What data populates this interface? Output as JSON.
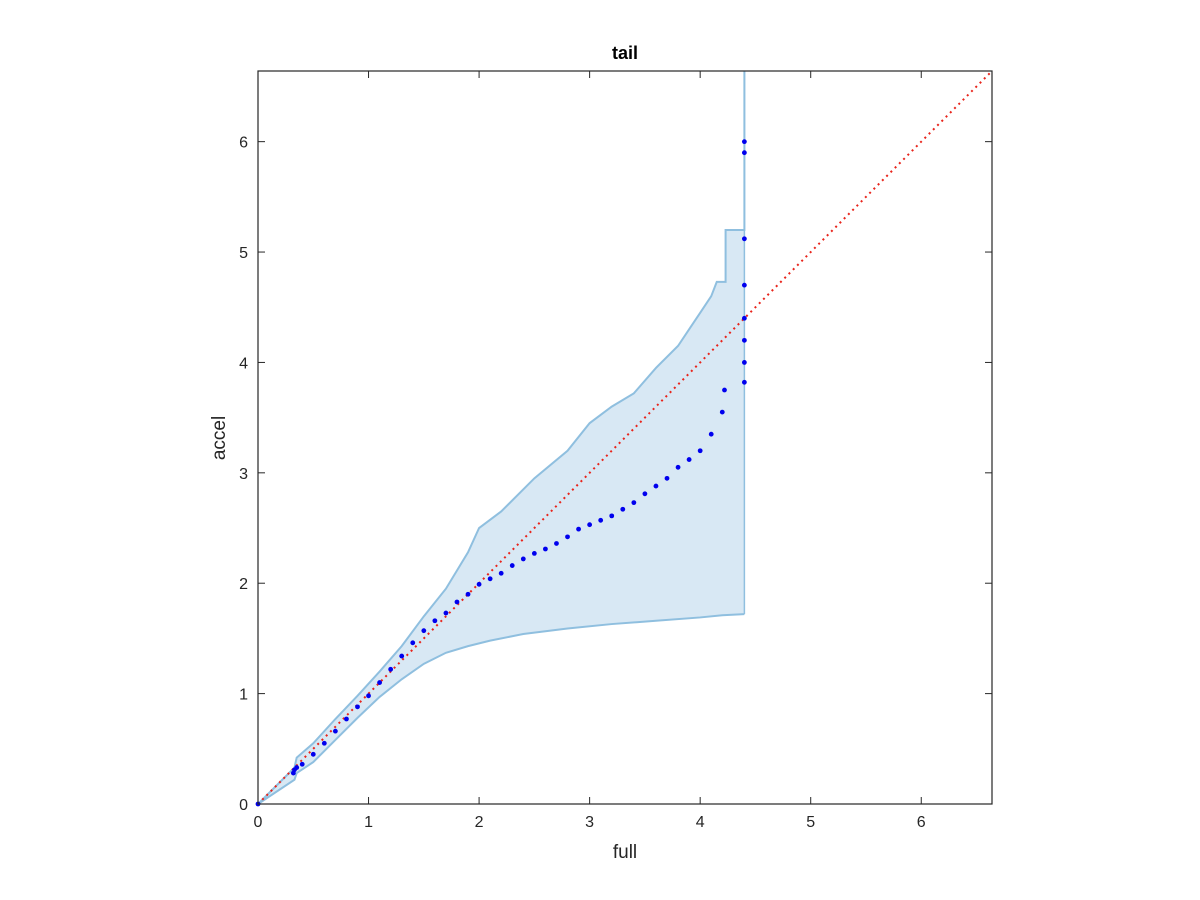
{
  "chart_data": {
    "type": "scatter",
    "title": "tail",
    "xlabel": "full",
    "ylabel": "accel",
    "xlim": [
      0,
      6.64
    ],
    "ylim": [
      0,
      6.64
    ],
    "xticks": [
      "0",
      "1",
      "2",
      "3",
      "4",
      "5",
      "6"
    ],
    "yticks": [
      "0",
      "1",
      "2",
      "3",
      "4",
      "5",
      "6"
    ],
    "grid": false,
    "legend": "none",
    "colors": {
      "points": "#0000ee",
      "reference_line": "#e8241b",
      "band_fill": "#d8e8f4",
      "band_edge": "#8fbfdf",
      "axes": "#262626"
    },
    "reference_line": {
      "style": "dotted",
      "from": [
        0,
        0
      ],
      "to": [
        6.64,
        6.64
      ]
    },
    "envelope_upper": [
      [
        0,
        0
      ],
      [
        0.33,
        0.33
      ],
      [
        0.35,
        0.42
      ],
      [
        0.5,
        0.55
      ],
      [
        0.7,
        0.77
      ],
      [
        0.9,
        0.98
      ],
      [
        1.1,
        1.2
      ],
      [
        1.3,
        1.43
      ],
      [
        1.5,
        1.7
      ],
      [
        1.7,
        1.95
      ],
      [
        1.9,
        2.28
      ],
      [
        2.0,
        2.5
      ],
      [
        2.2,
        2.65
      ],
      [
        2.5,
        2.95
      ],
      [
        2.8,
        3.2
      ],
      [
        3.0,
        3.45
      ],
      [
        3.2,
        3.6
      ],
      [
        3.4,
        3.72
      ],
      [
        3.6,
        3.95
      ],
      [
        3.8,
        4.15
      ],
      [
        3.9,
        4.3
      ],
      [
        4.0,
        4.45
      ],
      [
        4.1,
        4.6
      ],
      [
        4.15,
        4.73
      ],
      [
        4.23,
        4.73
      ],
      [
        4.23,
        5.2
      ],
      [
        4.4,
        5.2
      ],
      [
        4.4,
        5.9
      ],
      [
        4.4,
        6.64
      ]
    ],
    "envelope_lower": [
      [
        0,
        0
      ],
      [
        0.33,
        0.22
      ],
      [
        0.35,
        0.28
      ],
      [
        0.5,
        0.38
      ],
      [
        0.7,
        0.58
      ],
      [
        0.9,
        0.78
      ],
      [
        1.1,
        0.97
      ],
      [
        1.3,
        1.13
      ],
      [
        1.5,
        1.27
      ],
      [
        1.7,
        1.37
      ],
      [
        1.9,
        1.43
      ],
      [
        2.1,
        1.48
      ],
      [
        2.4,
        1.54
      ],
      [
        2.8,
        1.59
      ],
      [
        3.2,
        1.63
      ],
      [
        3.6,
        1.66
      ],
      [
        4.0,
        1.69
      ],
      [
        4.2,
        1.71
      ],
      [
        4.4,
        1.72
      ]
    ],
    "series": [
      {
        "points": [
          [
            0.0,
            0.0
          ],
          [
            0.32,
            0.28
          ],
          [
            0.33,
            0.31
          ],
          [
            0.35,
            0.33
          ],
          [
            0.4,
            0.36
          ],
          [
            0.5,
            0.45
          ],
          [
            0.6,
            0.55
          ],
          [
            0.7,
            0.66
          ],
          [
            0.8,
            0.77
          ],
          [
            0.9,
            0.88
          ],
          [
            1.0,
            0.98
          ],
          [
            1.1,
            1.1
          ],
          [
            1.2,
            1.22
          ],
          [
            1.3,
            1.34
          ],
          [
            1.4,
            1.46
          ],
          [
            1.5,
            1.57
          ],
          [
            1.6,
            1.66
          ],
          [
            1.7,
            1.73
          ],
          [
            1.8,
            1.83
          ],
          [
            1.9,
            1.9
          ],
          [
            2.0,
            1.99
          ],
          [
            2.1,
            2.04
          ],
          [
            2.2,
            2.09
          ],
          [
            2.3,
            2.16
          ],
          [
            2.4,
            2.22
          ],
          [
            2.5,
            2.27
          ],
          [
            2.6,
            2.31
          ],
          [
            2.7,
            2.36
          ],
          [
            2.8,
            2.42
          ],
          [
            2.9,
            2.49
          ],
          [
            3.0,
            2.53
          ],
          [
            3.1,
            2.57
          ],
          [
            3.2,
            2.61
          ],
          [
            3.3,
            2.67
          ],
          [
            3.4,
            2.73
          ],
          [
            3.5,
            2.81
          ],
          [
            3.6,
            2.88
          ],
          [
            3.7,
            2.95
          ],
          [
            3.8,
            3.05
          ],
          [
            3.9,
            3.12
          ],
          [
            4.0,
            3.2
          ],
          [
            4.1,
            3.35
          ],
          [
            4.2,
            3.55
          ],
          [
            4.22,
            3.75
          ],
          [
            4.4,
            3.82
          ],
          [
            4.4,
            4.0
          ],
          [
            4.4,
            4.2
          ],
          [
            4.4,
            4.4
          ],
          [
            4.4,
            4.7
          ],
          [
            4.4,
            5.12
          ],
          [
            4.4,
            5.9
          ],
          [
            4.4,
            6.0
          ]
        ]
      }
    ]
  }
}
